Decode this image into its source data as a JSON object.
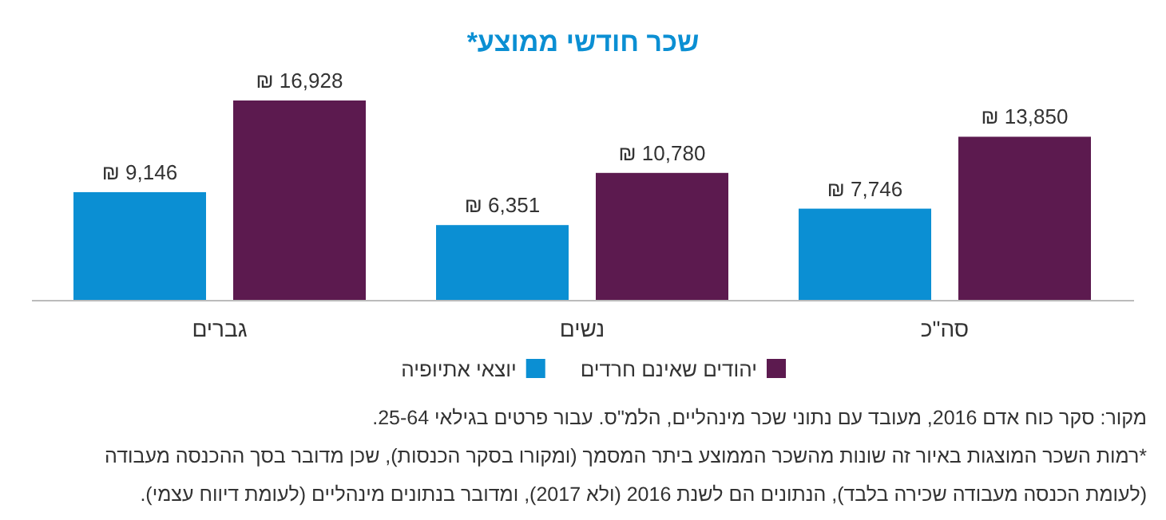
{
  "chart_data": {
    "type": "bar",
    "title": "שכר חודשי ממוצע*",
    "categories": [
      "גברים",
      "נשים",
      "סה\"כ"
    ],
    "series": [
      {
        "name": "יוצאי אתיופיה",
        "color": "#0b8fd3",
        "values": [
          9146,
          6351,
          7746
        ],
        "value_labels": [
          "₪ 9,146",
          "₪ 6,351",
          "₪ 7,746"
        ]
      },
      {
        "name": "יהודים שאינם חרדים",
        "color": "#5c1a4f",
        "values": [
          16928,
          10780,
          13850
        ],
        "value_labels": [
          "₪ 16,928",
          "₪ 10,780",
          "₪ 13,850"
        ]
      }
    ],
    "legend": "bottom",
    "annotations": [
      "מקור: סקר כוח אדם 2016, מעובד עם נתוני שכר מינהליים, הלמ\"ס. עבור פרטים בגילאי 25-64.",
      "*רמות השכר המוצגות באיור זה שונות מהשכר הממוצע ביתר המסמך (ומקורו בסקר הכנסות), שכן מדובר בסך ההכנסה מעבודה",
      "(לעומת הכנסה מעבודה שכירה בלבד), הנתונים הם לשנת 2016 (ולא 2017), ומדובר בנתונים מינהליים (לעומת דיווח עצמי)."
    ]
  }
}
